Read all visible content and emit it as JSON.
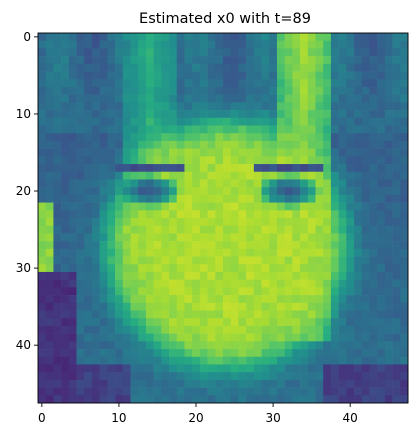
{
  "chart_data": {
    "type": "heatmap",
    "title": "Estimated x0 with t=89",
    "xlabel": "",
    "ylabel": "",
    "colormap": "viridis",
    "grid": false,
    "xlim": [
      -0.5,
      47.5
    ],
    "ylim": [
      47.5,
      -0.5
    ],
    "x_ticks": [
      0,
      10,
      20,
      30,
      40
    ],
    "y_ticks": [
      0,
      10,
      20,
      30,
      40
    ],
    "x_tick_labels": [
      "0",
      "10",
      "20",
      "30",
      "40"
    ],
    "y_tick_labels": [
      "0",
      "10",
      "20",
      "30",
      "40"
    ],
    "rows": 48,
    "cols": 48,
    "value_range": [
      0,
      1
    ],
    "values_description_note": "",
    "regions": [
      {
        "label": "background",
        "value": 0.28
      },
      {
        "label": "hair",
        "value": 0.36
      },
      {
        "label": "face",
        "value": 0.88
      },
      {
        "label": "eyes",
        "value": 0.15
      },
      {
        "label": "strands",
        "value": 0.68
      }
    ]
  }
}
